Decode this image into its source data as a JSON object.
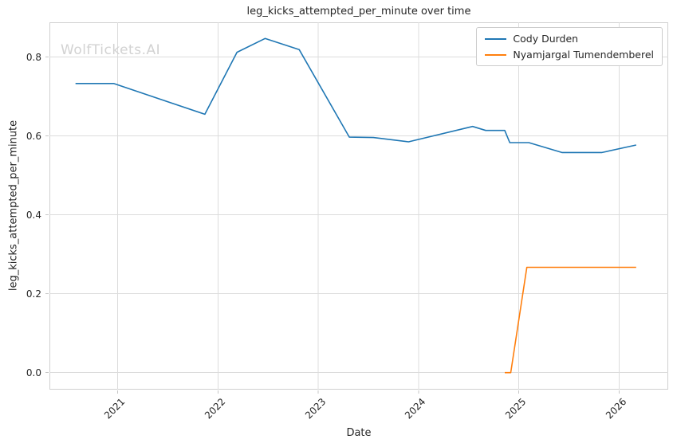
{
  "title": "leg_kicks_attempted_per_minute over time",
  "watermark": "WolfTickets.AI",
  "colors": {
    "grid": "#dcdcdc",
    "spine": "#d0d0d0",
    "tick_mark": "#c7c7c7",
    "text": "#262626",
    "watermark": "#d2d2d2",
    "background": "#ffffff"
  },
  "chart_data": {
    "type": "line",
    "title": "leg_kicks_attempted_per_minute over time",
    "xlabel": "Date",
    "ylabel": "leg_kicks_attempted_per_minute",
    "xlim": [
      2020.32,
      2026.49
    ],
    "ylim": [
      -0.043,
      0.888
    ],
    "x_ticks": [
      "2021",
      "2022",
      "2023",
      "2024",
      "2025",
      "2026"
    ],
    "y_ticks": [
      "0.0",
      "0.2",
      "0.4",
      "0.6",
      "0.8"
    ],
    "grid": true,
    "legend_position": "upper right",
    "series": [
      {
        "name": "Cody Durden",
        "color": "#1f77b4",
        "x": [
          2020.58,
          2020.96,
          2021.87,
          2022.19,
          2022.47,
          2022.81,
          2023.31,
          2023.55,
          2023.9,
          2024.54,
          2024.67,
          2024.86,
          2024.91,
          2025.1,
          2025.43,
          2025.83,
          2026.17
        ],
        "y": [
          0.733,
          0.733,
          0.655,
          0.812,
          0.847,
          0.819,
          0.597,
          0.596,
          0.585,
          0.624,
          0.614,
          0.614,
          0.583,
          0.583,
          0.558,
          0.558,
          0.577
        ]
      },
      {
        "name": "Nyamjargal Tumendemberel",
        "color": "#ff7f0e",
        "x": [
          2024.86,
          2024.92,
          2025.08,
          2026.17
        ],
        "y": [
          0.0,
          0.0,
          0.267,
          0.267
        ]
      }
    ]
  }
}
